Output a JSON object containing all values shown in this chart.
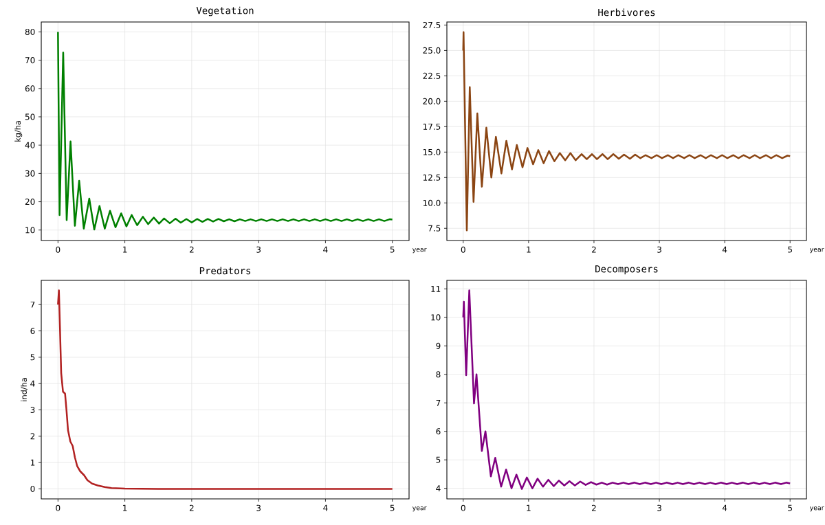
{
  "chart_data": [
    {
      "type": "line",
      "title": "Vegetation",
      "xlabel": "year",
      "ylabel": "kg/ha",
      "grid": true,
      "xlim": [
        -0.25,
        5.25
      ],
      "ylim": [
        6.3,
        83.5
      ],
      "xticks": [
        0,
        1,
        2,
        3,
        4,
        5
      ],
      "yticks": [
        10,
        20,
        30,
        40,
        50,
        60,
        70,
        80
      ],
      "x": [
        0,
        0.024,
        0.078,
        0.13,
        0.188,
        0.253,
        0.317,
        0.386,
        0.468,
        0.543,
        0.621,
        0.7,
        0.778,
        0.86,
        0.945,
        1.024,
        1.102,
        1.184,
        1.27,
        1.348,
        1.433,
        1.512,
        1.587,
        1.672,
        1.758,
        1.836,
        1.92,
        2.0,
        2.08,
        2.16,
        2.24,
        2.32,
        2.4,
        2.48,
        2.56,
        2.64,
        2.72,
        2.8,
        2.88,
        2.96,
        3.04,
        3.12,
        3.2,
        3.28,
        3.36,
        3.44,
        3.52,
        3.6,
        3.68,
        3.76,
        3.84,
        3.92,
        4.0,
        4.08,
        4.16,
        4.24,
        4.32,
        4.4,
        4.48,
        4.56,
        4.64,
        4.72,
        4.8,
        4.88,
        4.96,
        5.0
      ],
      "series": [
        {
          "color": "#008000",
          "values": [
            80,
            15.3,
            72.7,
            13.5,
            41.3,
            11.5,
            27.4,
            10.5,
            21.1,
            10.2,
            18.5,
            10.5,
            16.8,
            11.0,
            15.9,
            11.3,
            15.3,
            11.7,
            14.7,
            12.1,
            14.4,
            12.3,
            14.1,
            12.4,
            14.0,
            12.6,
            13.9,
            12.7,
            13.9,
            12.9,
            13.9,
            13.0,
            13.9,
            13.1,
            13.8,
            13.1,
            13.8,
            13.2,
            13.8,
            13.2,
            13.8,
            13.2,
            13.8,
            13.2,
            13.8,
            13.2,
            13.8,
            13.2,
            13.8,
            13.2,
            13.8,
            13.2,
            13.8,
            13.2,
            13.8,
            13.2,
            13.8,
            13.2,
            13.8,
            13.2,
            13.8,
            13.2,
            13.8,
            13.2,
            13.8,
            13.7
          ]
        }
      ]
    },
    {
      "type": "line",
      "title": "Herbivores",
      "xlabel": "year",
      "grid": true,
      "xlim": [
        -0.25,
        5.25
      ],
      "ylim": [
        6.3,
        27.8
      ],
      "xticks": [
        0,
        1,
        2,
        3,
        4,
        5
      ],
      "yticks": [
        7.5,
        {
          "value": 10,
          "label": "10.0"
        },
        12.5,
        {
          "value": 15,
          "label": "15.0"
        },
        17.5,
        {
          "value": 20,
          "label": "20.0"
        },
        22.5,
        {
          "value": 25,
          "label": "25.0"
        },
        27.5
      ],
      "x": [
        0,
        0.005,
        0.055,
        0.1,
        0.158,
        0.216,
        0.285,
        0.354,
        0.43,
        0.5,
        0.584,
        0.66,
        0.746,
        0.82,
        0.907,
        0.983,
        1.069,
        1.148,
        1.23,
        1.313,
        1.395,
        1.478,
        1.56,
        1.64,
        1.72,
        1.81,
        1.89,
        1.97,
        2.045,
        2.13,
        2.21,
        2.296,
        2.38,
        2.46,
        2.55,
        2.63,
        2.71,
        2.79,
        2.88,
        2.96,
        3.04,
        3.13,
        3.21,
        3.29,
        3.38,
        3.46,
        3.54,
        3.63,
        3.71,
        3.79,
        3.88,
        3.96,
        4.04,
        4.13,
        4.21,
        4.29,
        4.38,
        4.46,
        4.54,
        4.63,
        4.71,
        4.79,
        4.88,
        4.96,
        5.0
      ],
      "series": [
        {
          "color": "#8b4513",
          "values": [
            25.0,
            26.8,
            7.3,
            21.4,
            10.1,
            18.8,
            11.6,
            17.4,
            12.5,
            16.5,
            12.9,
            16.1,
            13.3,
            15.7,
            13.5,
            15.4,
            13.8,
            15.2,
            13.9,
            15.1,
            14.1,
            14.9,
            14.2,
            14.9,
            14.2,
            14.8,
            14.3,
            14.8,
            14.3,
            14.8,
            14.3,
            14.8,
            14.35,
            14.75,
            14.35,
            14.75,
            14.4,
            14.7,
            14.4,
            14.7,
            14.4,
            14.7,
            14.4,
            14.7,
            14.4,
            14.7,
            14.4,
            14.7,
            14.4,
            14.7,
            14.4,
            14.7,
            14.4,
            14.7,
            14.4,
            14.7,
            14.4,
            14.7,
            14.4,
            14.7,
            14.4,
            14.7,
            14.4,
            14.65,
            14.6
          ]
        }
      ]
    },
    {
      "type": "line",
      "title": "Predators",
      "xlabel": "year",
      "ylabel": "ind/ha",
      "grid": true,
      "xlim": [
        -0.25,
        5.25
      ],
      "ylim": [
        -0.38,
        7.92
      ],
      "xticks": [
        0,
        1,
        2,
        3,
        4,
        5
      ],
      "yticks": [
        0,
        1,
        2,
        3,
        4,
        5,
        6,
        7
      ],
      "x": [
        0,
        0.014,
        0.03,
        0.048,
        0.075,
        0.106,
        0.127,
        0.15,
        0.185,
        0.22,
        0.253,
        0.288,
        0.332,
        0.39,
        0.44,
        0.51,
        0.596,
        0.7,
        0.8,
        1.0,
        1.5,
        5.0
      ],
      "series": [
        {
          "color": "#b22222",
          "values": [
            7.0,
            7.54,
            6.1,
            4.4,
            3.69,
            3.62,
            3.0,
            2.23,
            1.8,
            1.63,
            1.2,
            0.86,
            0.67,
            0.52,
            0.33,
            0.2,
            0.13,
            0.07,
            0.03,
            0.01,
            0,
            0
          ]
        }
      ]
    },
    {
      "type": "line",
      "title": "Decomposers",
      "xlabel": "year",
      "grid": true,
      "xlim": [
        -0.25,
        5.25
      ],
      "ylim": [
        3.63,
        11.3
      ],
      "xticks": [
        0,
        1,
        2,
        3,
        4,
        5
      ],
      "yticks": [
        4,
        5,
        6,
        7,
        8,
        9,
        10,
        11
      ],
      "x": [
        0,
        0.01,
        0.045,
        0.093,
        0.165,
        0.203,
        0.285,
        0.34,
        0.423,
        0.49,
        0.58,
        0.656,
        0.739,
        0.814,
        0.897,
        0.973,
        1.058,
        1.137,
        1.22,
        1.302,
        1.385,
        1.464,
        1.546,
        1.625,
        1.708,
        1.79,
        1.873,
        1.955,
        2.038,
        2.12,
        2.2,
        2.285,
        2.368,
        2.45,
        2.53,
        2.62,
        2.7,
        2.78,
        2.87,
        2.95,
        3.03,
        3.11,
        3.2,
        3.28,
        3.36,
        3.45,
        3.53,
        3.61,
        3.7,
        3.78,
        3.86,
        3.94,
        4.03,
        4.11,
        4.19,
        4.28,
        4.36,
        4.44,
        4.53,
        4.61,
        4.69,
        4.77,
        4.86,
        4.94,
        5.0
      ],
      "series": [
        {
          "color": "#800080",
          "values": [
            10.0,
            10.55,
            7.97,
            10.95,
            6.98,
            8.0,
            5.31,
            6.0,
            4.42,
            5.07,
            4.06,
            4.66,
            4.0,
            4.48,
            3.98,
            4.38,
            4.0,
            4.34,
            4.06,
            4.3,
            4.08,
            4.27,
            4.1,
            4.25,
            4.1,
            4.24,
            4.12,
            4.22,
            4.13,
            4.2,
            4.13,
            4.2,
            4.15,
            4.2,
            4.15,
            4.2,
            4.15,
            4.2,
            4.15,
            4.2,
            4.15,
            4.2,
            4.15,
            4.2,
            4.15,
            4.2,
            4.15,
            4.2,
            4.15,
            4.2,
            4.15,
            4.2,
            4.15,
            4.2,
            4.15,
            4.2,
            4.15,
            4.2,
            4.15,
            4.2,
            4.15,
            4.2,
            4.15,
            4.2,
            4.17
          ]
        }
      ]
    }
  ]
}
